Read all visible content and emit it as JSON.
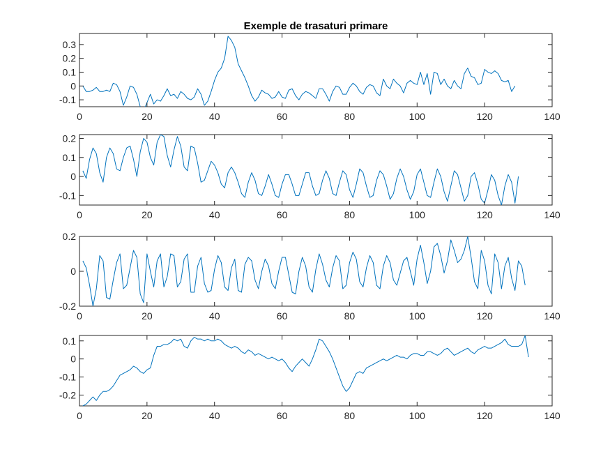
{
  "chart_data": {
    "type": "line",
    "title": "Exemple de trasaturi primare",
    "series_color": "#0072BD",
    "panels": [
      {
        "xlim": [
          0,
          140
        ],
        "ylim": [
          -0.15,
          0.38
        ],
        "xticks": [
          0,
          20,
          40,
          60,
          80,
          100,
          120,
          140
        ],
        "yticks": [
          -0.1,
          0,
          0.1,
          0.2,
          0.3
        ],
        "ytick_labels": [
          "-0.1",
          "0",
          "0.1",
          "0.2",
          "0.3"
        ],
        "values": [
          0.0,
          -0.04,
          -0.04,
          -0.03,
          -0.01,
          -0.04,
          -0.04,
          -0.03,
          -0.04,
          0.02,
          0.01,
          -0.04,
          -0.14,
          -0.08,
          0.0,
          -0.01,
          -0.06,
          -0.15,
          -0.18,
          -0.12,
          -0.06,
          -0.13,
          -0.1,
          -0.11,
          -0.07,
          -0.02,
          -0.07,
          -0.06,
          -0.09,
          -0.04,
          -0.06,
          -0.09,
          -0.1,
          -0.08,
          -0.02,
          -0.06,
          -0.14,
          -0.11,
          -0.04,
          0.04,
          0.1,
          0.13,
          0.2,
          0.36,
          0.33,
          0.28,
          0.16,
          0.11,
          0.06,
          0.0,
          -0.07,
          -0.11,
          -0.08,
          -0.03,
          -0.05,
          -0.06,
          -0.09,
          -0.08,
          -0.04,
          -0.08,
          -0.09,
          -0.03,
          -0.02,
          -0.07,
          -0.1,
          -0.06,
          -0.04,
          -0.05,
          -0.07,
          -0.09,
          -0.02,
          -0.02,
          -0.06,
          -0.11,
          -0.04,
          0.0,
          -0.01,
          -0.06,
          -0.06,
          -0.01,
          0.02,
          0.0,
          -0.04,
          -0.06,
          -0.01,
          0.01,
          0.0,
          -0.05,
          -0.07,
          0.05,
          0.0,
          -0.02,
          0.05,
          0.02,
          0.0,
          -0.05,
          0.02,
          0.04,
          0.02,
          0.01,
          0.1,
          0.01,
          0.09,
          -0.06,
          0.1,
          0.09,
          0.01,
          0.05,
          0.0,
          -0.02,
          0.04,
          0.0,
          -0.02,
          0.09,
          0.13,
          0.07,
          0.06,
          0.01,
          0.02,
          0.12,
          0.1,
          0.09,
          0.11,
          0.09,
          0.04,
          0.03,
          0.04,
          -0.04,
          0.0
        ],
        "x_start": 1
      },
      {
        "xlim": [
          0,
          140
        ],
        "ylim": [
          -0.15,
          0.22
        ],
        "xticks": [
          0,
          20,
          40,
          60,
          80,
          100,
          120,
          140
        ],
        "yticks": [
          -0.1,
          0,
          0.1,
          0.2
        ],
        "ytick_labels": [
          "-0.1",
          "0",
          "0.1",
          "0.2"
        ],
        "values": [
          0.03,
          -0.01,
          0.09,
          0.15,
          0.12,
          0.02,
          -0.03,
          0.1,
          0.15,
          0.12,
          0.04,
          0.03,
          0.1,
          0.15,
          0.16,
          0.09,
          0.0,
          0.13,
          0.2,
          0.18,
          0.1,
          0.06,
          0.18,
          0.22,
          0.21,
          0.11,
          0.05,
          0.14,
          0.21,
          0.16,
          0.05,
          0.03,
          0.16,
          0.15,
          0.07,
          -0.03,
          -0.02,
          0.03,
          0.08,
          0.06,
          0.02,
          -0.04,
          -0.06,
          0.02,
          0.05,
          0.02,
          -0.03,
          -0.09,
          -0.11,
          -0.03,
          0.02,
          -0.02,
          -0.09,
          -0.1,
          -0.05,
          0.01,
          -0.04,
          -0.1,
          -0.11,
          -0.04,
          0.01,
          0.01,
          -0.04,
          -0.1,
          -0.1,
          -0.04,
          0.02,
          0.02,
          -0.05,
          -0.1,
          -0.09,
          -0.02,
          0.03,
          -0.01,
          -0.09,
          -0.1,
          -0.03,
          0.03,
          0.01,
          -0.07,
          -0.11,
          -0.04,
          0.04,
          0.02,
          -0.05,
          -0.11,
          -0.1,
          -0.02,
          0.03,
          0.01,
          -0.05,
          -0.12,
          -0.09,
          -0.01,
          0.04,
          0.0,
          -0.07,
          -0.12,
          -0.08,
          0.01,
          0.04,
          -0.03,
          -0.1,
          -0.11,
          -0.03,
          0.04,
          0.0,
          -0.08,
          -0.13,
          -0.05,
          0.03,
          0.01,
          -0.06,
          -0.13,
          -0.1,
          0.0,
          0.02,
          -0.04,
          -0.12,
          -0.14,
          -0.07,
          0.01,
          -0.02,
          -0.1,
          -0.15,
          -0.05,
          0.01,
          -0.03,
          -0.14,
          0.0
        ],
        "x_start": 1
      },
      {
        "xlim": [
          0,
          140
        ],
        "ylim": [
          -0.2,
          0.2
        ],
        "xticks": [
          0,
          20,
          40,
          60,
          80,
          100,
          120,
          140
        ],
        "yticks": [
          -0.2,
          0,
          0.2
        ],
        "ytick_labels": [
          "-0.2",
          "0",
          "0.2"
        ],
        "values": [
          0.06,
          0.02,
          -0.08,
          -0.2,
          -0.1,
          0.09,
          0.06,
          -0.15,
          -0.16,
          -0.05,
          0.05,
          0.1,
          -0.1,
          -0.08,
          0.02,
          0.12,
          0.08,
          -0.13,
          -0.18,
          0.1,
          0.0,
          -0.09,
          0.06,
          0.1,
          -0.09,
          -0.03,
          0.1,
          0.09,
          -0.09,
          -0.06,
          0.07,
          0.1,
          -0.12,
          -0.12,
          0.03,
          0.08,
          -0.07,
          -0.12,
          -0.11,
          0.01,
          0.09,
          0.05,
          -0.09,
          -0.11,
          0.02,
          0.07,
          -0.11,
          -0.12,
          0.04,
          0.08,
          0.06,
          -0.05,
          -0.1,
          0.0,
          0.07,
          0.03,
          -0.07,
          -0.1,
          0.0,
          0.08,
          0.08,
          -0.02,
          -0.12,
          -0.13,
          0.0,
          0.08,
          0.03,
          -0.09,
          -0.12,
          0.01,
          0.1,
          0.04,
          -0.05,
          -0.09,
          0.02,
          0.09,
          0.06,
          -0.1,
          -0.08,
          0.05,
          0.11,
          0.07,
          -0.06,
          -0.09,
          0.02,
          0.09,
          0.05,
          -0.08,
          -0.1,
          0.03,
          0.09,
          0.05,
          -0.05,
          -0.08,
          -0.01,
          0.06,
          0.08,
          0.0,
          -0.08,
          0.07,
          0.15,
          0.05,
          -0.07,
          0.0,
          0.14,
          0.16,
          0.09,
          -0.01,
          0.06,
          0.18,
          0.12,
          0.05,
          0.07,
          0.12,
          0.2,
          0.08,
          -0.06,
          -0.1,
          0.12,
          0.06,
          -0.08,
          -0.13,
          0.1,
          0.05,
          -0.1,
          0.03,
          0.08,
          -0.04,
          -0.11,
          0.06,
          0.03,
          -0.08
        ],
        "x_start": 1
      },
      {
        "xlim": [
          0,
          140
        ],
        "ylim": [
          -0.26,
          0.13
        ],
        "xticks": [
          0,
          20,
          40,
          60,
          80,
          100,
          120,
          140
        ],
        "yticks": [
          -0.2,
          -0.1,
          0,
          0.1
        ],
        "ytick_labels": [
          "-0.2",
          "-0.1",
          "0",
          "0.1"
        ],
        "values": [
          -0.26,
          -0.25,
          -0.23,
          -0.21,
          -0.23,
          -0.2,
          -0.18,
          -0.18,
          -0.17,
          -0.15,
          -0.12,
          -0.09,
          -0.08,
          -0.07,
          -0.06,
          -0.04,
          -0.05,
          -0.07,
          -0.08,
          -0.06,
          -0.05,
          0.02,
          0.07,
          0.07,
          0.08,
          0.08,
          0.09,
          0.11,
          0.1,
          0.11,
          0.07,
          0.06,
          0.1,
          0.12,
          0.11,
          0.11,
          0.1,
          0.11,
          0.1,
          0.1,
          0.11,
          0.1,
          0.08,
          0.07,
          0.06,
          0.07,
          0.06,
          0.04,
          0.03,
          0.05,
          0.04,
          0.02,
          0.03,
          0.02,
          0.01,
          0.0,
          0.01,
          0.0,
          -0.01,
          0.0,
          -0.02,
          -0.05,
          -0.07,
          -0.04,
          -0.02,
          0.0,
          -0.02,
          -0.04,
          0.0,
          0.05,
          0.11,
          0.1,
          0.07,
          0.04,
          0.0,
          -0.05,
          -0.1,
          -0.15,
          -0.18,
          -0.16,
          -0.12,
          -0.08,
          -0.07,
          -0.08,
          -0.05,
          -0.04,
          -0.03,
          -0.02,
          -0.01,
          0.0,
          -0.01,
          0.0,
          0.01,
          0.02,
          0.01,
          0.01,
          0.0,
          0.02,
          0.03,
          0.03,
          0.02,
          0.02,
          0.04,
          0.04,
          0.03,
          0.02,
          0.03,
          0.05,
          0.06,
          0.04,
          0.02,
          0.03,
          0.04,
          0.05,
          0.06,
          0.04,
          0.03,
          0.05,
          0.06,
          0.07,
          0.06,
          0.06,
          0.07,
          0.08,
          0.09,
          0.11,
          0.08,
          0.07,
          0.07,
          0.07,
          0.08,
          0.13,
          0.01
        ],
        "x_start": 1
      }
    ]
  }
}
